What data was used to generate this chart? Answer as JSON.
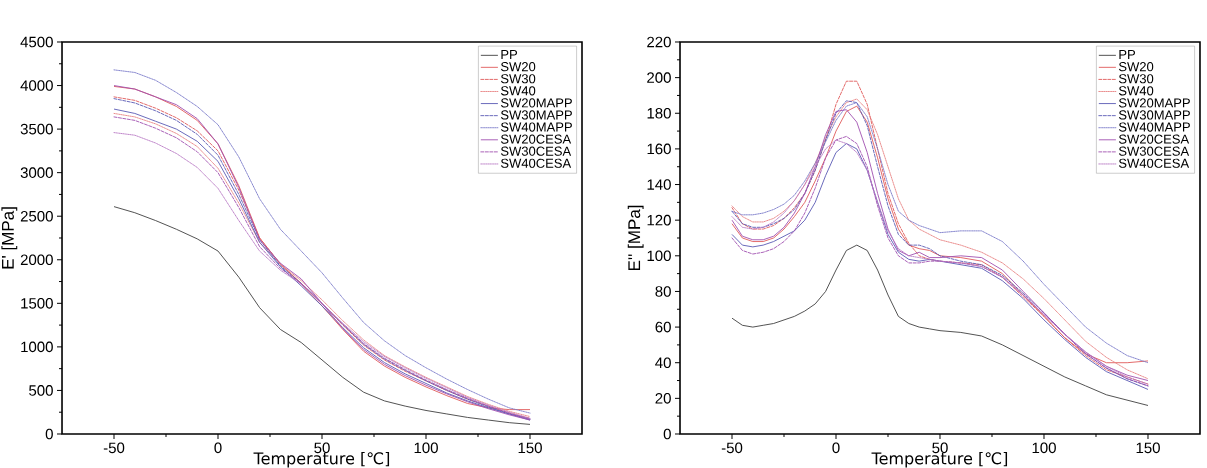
{
  "chart_data": [
    {
      "type": "line",
      "xlabel": "Temperature [℃]",
      "ylabel": "E' [MPa]",
      "xlim": [
        -75,
        175
      ],
      "ylim": [
        0,
        4500
      ],
      "xticks": [
        -50,
        0,
        50,
        100,
        150
      ],
      "yticks": [
        0,
        500,
        1000,
        1500,
        2000,
        2500,
        3000,
        3500,
        4000,
        4500
      ],
      "legend": "top right",
      "x": [
        -50,
        -40,
        -30,
        -20,
        -10,
        0,
        10,
        20,
        30,
        40,
        50,
        60,
        70,
        80,
        90,
        100,
        110,
        120,
        130,
        140,
        150
      ],
      "series": [
        {
          "name": "PP",
          "color": "#404040",
          "line_style": "solid",
          "values": [
            2610,
            2540,
            2450,
            2350,
            2240,
            2100,
            1800,
            1450,
            1200,
            1050,
            850,
            650,
            480,
            380,
            320,
            270,
            230,
            190,
            160,
            130,
            110
          ]
        },
        {
          "name": "SW20",
          "color": "#e05a5a",
          "line_style": "solid",
          "values": [
            3990,
            3960,
            3870,
            3760,
            3600,
            3330,
            2850,
            2250,
            1950,
            1720,
            1470,
            1200,
            950,
            780,
            650,
            540,
            440,
            350,
            300,
            280,
            280
          ]
        },
        {
          "name": "SW30",
          "color": "#e05a5a",
          "line_style": "dashed",
          "values": [
            3870,
            3830,
            3740,
            3630,
            3480,
            3250,
            2800,
            2250,
            1950,
            1730,
            1500,
            1250,
            1020,
            850,
            720,
            610,
            500,
            400,
            320,
            240,
            180
          ]
        },
        {
          "name": "SW40",
          "color": "#e88080",
          "line_style": "dotted",
          "values": [
            3680,
            3640,
            3560,
            3450,
            3300,
            3050,
            2650,
            2200,
            1950,
            1760,
            1540,
            1300,
            1080,
            900,
            770,
            650,
            540,
            430,
            340,
            260,
            200
          ]
        },
        {
          "name": "SW20MAPP",
          "color": "#5a5ab4",
          "line_style": "solid",
          "values": [
            3730,
            3680,
            3590,
            3500,
            3360,
            3130,
            2700,
            2200,
            1920,
            1700,
            1470,
            1220,
            990,
            820,
            690,
            580,
            470,
            380,
            300,
            230,
            160
          ]
        },
        {
          "name": "SW30MAPP",
          "color": "#5a5ab4",
          "line_style": "dashed",
          "values": [
            3850,
            3800,
            3710,
            3600,
            3440,
            3200,
            2750,
            2230,
            1930,
            1730,
            1500,
            1260,
            1030,
            860,
            730,
            610,
            500,
            400,
            310,
            230,
            170
          ]
        },
        {
          "name": "SW40MAPP",
          "color": "#7878c8",
          "line_style": "dotted",
          "values": [
            4180,
            4150,
            4060,
            3920,
            3760,
            3550,
            3180,
            2700,
            2350,
            2100,
            1850,
            1560,
            1280,
            1070,
            900,
            760,
            630,
            510,
            400,
            300,
            240
          ]
        },
        {
          "name": "SW20CESA",
          "color": "#a050b0",
          "line_style": "solid",
          "values": [
            4000,
            3960,
            3870,
            3780,
            3620,
            3330,
            2830,
            2230,
            1960,
            1780,
            1500,
            1210,
            970,
            800,
            670,
            560,
            460,
            370,
            290,
            220,
            160
          ]
        },
        {
          "name": "SW30CESA",
          "color": "#a050b0",
          "line_style": "dashed",
          "values": [
            3640,
            3600,
            3510,
            3400,
            3240,
            3000,
            2600,
            2150,
            1900,
            1730,
            1500,
            1260,
            1040,
            870,
            740,
            620,
            510,
            410,
            320,
            240,
            170
          ]
        },
        {
          "name": "SW40CESA",
          "color": "#b878c4",
          "line_style": "dotted",
          "values": [
            3460,
            3430,
            3340,
            3220,
            3060,
            2820,
            2450,
            2100,
            1880,
            1720,
            1500,
            1270,
            1060,
            890,
            760,
            640,
            530,
            420,
            330,
            250,
            180
          ]
        }
      ]
    },
    {
      "type": "line",
      "xlabel": "Temperature [℃]",
      "ylabel": "E'' [MPa]",
      "xlim": [
        -75,
        175
      ],
      "ylim": [
        0,
        220
      ],
      "xticks": [
        -50,
        0,
        50,
        100,
        150
      ],
      "yticks": [
        0,
        20,
        40,
        60,
        80,
        100,
        120,
        140,
        160,
        180,
        200,
        220
      ],
      "legend": "top right",
      "x": [
        -50,
        -45,
        -40,
        -35,
        -30,
        -25,
        -20,
        -15,
        -10,
        -5,
        0,
        5,
        10,
        15,
        20,
        25,
        30,
        35,
        40,
        45,
        50,
        60,
        70,
        80,
        90,
        100,
        110,
        120,
        130,
        140,
        150
      ],
      "series": [
        {
          "name": "PP",
          "color": "#404040",
          "line_style": "solid",
          "values": [
            65,
            61,
            60,
            61,
            62,
            64,
            66,
            69,
            73,
            80,
            92,
            103,
            106,
            103,
            92,
            78,
            66,
            62,
            60,
            59,
            58,
            57,
            55,
            50,
            44,
            38,
            32,
            27,
            22,
            19,
            16
          ]
        },
        {
          "name": "SW20",
          "color": "#e05a5a",
          "line_style": "solid",
          "values": [
            118,
            110,
            108,
            108,
            110,
            115,
            122,
            130,
            142,
            155,
            170,
            181,
            184,
            175,
            155,
            132,
            115,
            106,
            104,
            103,
            100,
            99,
            97,
            90,
            78,
            66,
            54,
            45,
            40,
            40,
            41
          ]
        },
        {
          "name": "SW30",
          "color": "#e05a5a",
          "line_style": "dashed",
          "values": [
            127,
            118,
            115,
            115,
            117,
            121,
            127,
            135,
            148,
            165,
            185,
            198,
            198,
            185,
            160,
            135,
            118,
            107,
            100,
            98,
            97,
            96,
            95,
            88,
            77,
            66,
            54,
            44,
            36,
            32,
            28
          ]
        },
        {
          "name": "SW40",
          "color": "#e88080",
          "line_style": "dotted",
          "values": [
            128,
            122,
            119,
            119,
            121,
            125,
            131,
            140,
            152,
            166,
            178,
            186,
            188,
            182,
            168,
            150,
            132,
            120,
            115,
            112,
            109,
            106,
            102,
            96,
            87,
            76,
            64,
            52,
            43,
            36,
            31
          ]
        },
        {
          "name": "SW20MAPP",
          "color": "#5a5ab4",
          "line_style": "solid",
          "values": [
            112,
            106,
            105,
            106,
            108,
            111,
            114,
            120,
            130,
            145,
            158,
            163,
            160,
            148,
            130,
            112,
            102,
            98,
            97,
            98,
            97,
            95,
            93,
            86,
            76,
            64,
            53,
            43,
            35,
            30,
            25
          ]
        },
        {
          "name": "SW30MAPP",
          "color": "#5a5ab4",
          "line_style": "dashed",
          "values": [
            125,
            118,
            116,
            116,
            118,
            121,
            126,
            135,
            148,
            165,
            180,
            187,
            186,
            173,
            150,
            128,
            112,
            106,
            106,
            104,
            100,
            97,
            95,
            89,
            79,
            68,
            56,
            45,
            37,
            31,
            27
          ]
        },
        {
          "name": "SW40MAPP",
          "color": "#7878c8",
          "line_style": "dotted",
          "values": [
            125,
            123,
            123,
            124,
            126,
            129,
            134,
            142,
            152,
            164,
            176,
            184,
            186,
            178,
            160,
            140,
            125,
            120,
            117,
            115,
            113,
            114,
            114,
            108,
            97,
            84,
            72,
            60,
            51,
            44,
            40
          ]
        },
        {
          "name": "SW20CESA",
          "color": "#a050b0",
          "line_style": "solid",
          "values": [
            120,
            111,
            109,
            109,
            111,
            116,
            124,
            135,
            150,
            168,
            181,
            182,
            175,
            158,
            135,
            115,
            103,
            100,
            102,
            99,
            99,
            100,
            99,
            92,
            80,
            68,
            56,
            46,
            38,
            33,
            30
          ]
        },
        {
          "name": "SW30CESA",
          "color": "#a050b0",
          "line_style": "dashed",
          "values": [
            110,
            103,
            101,
            102,
            104,
            108,
            114,
            124,
            138,
            155,
            165,
            167,
            163,
            150,
            128,
            110,
            100,
            96,
            96,
            97,
            97,
            96,
            94,
            88,
            78,
            67,
            56,
            45,
            37,
            31,
            27
          ]
        },
        {
          "name": "SW40CESA",
          "color": "#b878c4",
          "line_style": "dotted",
          "values": [
            122,
            116,
            115,
            116,
            119,
            124,
            131,
            140,
            150,
            160,
            165,
            163,
            158,
            148,
            130,
            114,
            104,
            100,
            99,
            98,
            97,
            96,
            94,
            88,
            78,
            67,
            56,
            46,
            38,
            32,
            28
          ]
        }
      ]
    }
  ]
}
